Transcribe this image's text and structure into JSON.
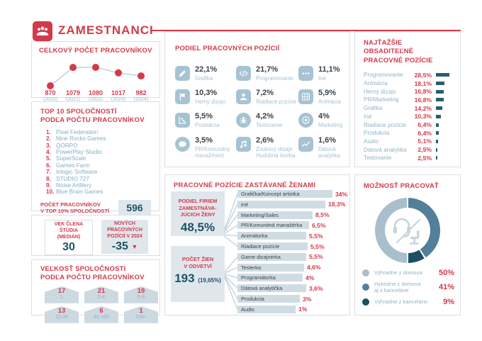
{
  "header": {
    "title": "ZAMESTNANCI",
    "logo_icon": "people-icon"
  },
  "colors": {
    "accent_red": "#d4394a",
    "dark_teal": "#1d5363",
    "ink": "#3a434b",
    "label_blue": "#a5c2d3",
    "tile_blue": "#a6c3d3",
    "bar_gray": "#cfdce3",
    "box_gray": "#dfe7ec",
    "hard_bar": "#2a5d70",
    "donut_light": "#a9bfcb",
    "donut_mid": "#527f99",
    "donut_dark": "#1d4f63"
  },
  "total": {
    "title": "CELKOVÝ POČET PRACOVNÍKOV"
  },
  "top10": {
    "title": "TOP 10 SPOLOČNOSTÍ\nPODĽA POČTU PRACOVNÍKOV",
    "companies": [
      "Pixel Federation",
      "Nine Rocks Games",
      "QORPO",
      "PowerPlay Studio",
      "SuperScale",
      "Games Farm",
      "Inlogic Software",
      "STUDIO 727",
      "Noise Artillery",
      "Blue Brain Games"
    ],
    "footer_label": "POČET PRACOVNÍKOV\nV TOP 10% SPOLOČNOSTÍ",
    "footer_value": "596"
  },
  "age_new": {
    "age_label": "VEK ČLENA\nŠTÚDIA\n(MEDIÁN)",
    "age_value": "30",
    "new_label": "NOVÝCH\nPRACOVNÝCH\nPOZÍCIÍ V 2024",
    "new_value": "-35",
    "new_trend": "down"
  },
  "size": {
    "title": "VEĽKOSŤ SPOLOČNOSTI\nPODĽA POČTU PRACOVNÍKOV",
    "items": [
      {
        "count": "17",
        "range": "1"
      },
      {
        "count": "21",
        "range": "2-4"
      },
      {
        "count": "19",
        "range": "5-9"
      },
      {
        "count": "13",
        "range": "10-39"
      },
      {
        "count": "6",
        "range": "40-100"
      },
      {
        "count": "1",
        "range": "200+"
      }
    ]
  },
  "podiel": {
    "title": "PODIEL PRACOVNÝCH POZÍCIÍ",
    "items": [
      {
        "pct": "22,1%",
        "label": "Grafika",
        "icon": "pen-icon",
        "shape": "square"
      },
      {
        "pct": "21,7%",
        "label": "Programovanie",
        "icon": "code-icon",
        "shape": "square"
      },
      {
        "pct": "11,1%",
        "label": "Iné",
        "icon": "dots-icon",
        "shape": "square"
      },
      {
        "pct": "10,3%",
        "label": "Herný dizajn",
        "icon": "flag-icon",
        "shape": "square"
      },
      {
        "pct": "7,2%",
        "label": "Riadiace pozície",
        "icon": "person-icon",
        "shape": "square"
      },
      {
        "pct": "5,9%",
        "label": "Animácia",
        "icon": "film-icon",
        "shape": "square"
      },
      {
        "pct": "5,5%",
        "label": "Produkcia",
        "icon": "decline-chart-icon",
        "shape": "square"
      },
      {
        "pct": "4,2%",
        "label": "Testovanie",
        "icon": "bug-icon",
        "shape": "round"
      },
      {
        "pct": "4%",
        "label": "Marketing",
        "icon": "target-icon",
        "shape": "round"
      },
      {
        "pct": "3,5%",
        "label": "PR/Komunitný\nmanažment",
        "icon": "chat-icon",
        "shape": "round"
      },
      {
        "pct": "2,6%",
        "label": "Zvukový dizajn\nHudobná tvorba",
        "icon": "music-note-icon",
        "shape": "square"
      },
      {
        "pct": "1,6%",
        "label": "Dátová\nanalytika",
        "icon": "line-chart-icon",
        "shape": "square"
      }
    ]
  },
  "women": {
    "title": "PRACOVNÉ POZÍCIE ZASTÁVANÉ ŽENAMI",
    "box1_label": "PODIEL FIRIEM\nZAMESTNÁVA-\nJÚCICH ŽENY",
    "box1_value": "48,5%",
    "box2_label": "POČET ŽIEN\nV ODVETVÍ",
    "box2_value": "193",
    "box2_sub": "(19,65%)",
    "bars": [
      {
        "label": "Grafička/Koncept artistka",
        "pct": "34%",
        "value": 34
      },
      {
        "label": "Iné",
        "pct": "18,3%",
        "value": 18.3
      },
      {
        "label": "Marketing/Sales",
        "pct": "8,5%",
        "value": 8.5
      },
      {
        "label": "PR/Komunitná manažérka",
        "pct": "6,5%",
        "value": 6.5
      },
      {
        "label": "Animátorka",
        "pct": "5,5%",
        "value": 5.5
      },
      {
        "label": "Riadiace pozície",
        "pct": "5,5%",
        "value": 5.5
      },
      {
        "label": "Game dizajnérka",
        "pct": "5,5%",
        "value": 5.5
      },
      {
        "label": "Testerka",
        "pct": "4,6%",
        "value": 4.6
      },
      {
        "label": "Programátorka",
        "pct": "4%",
        "value": 4
      },
      {
        "label": "Dátová analytička",
        "pct": "3,6%",
        "value": 3.6
      },
      {
        "label": "Produkcia",
        "pct": "3%",
        "value": 3
      },
      {
        "label": "Audio",
        "pct": "1%",
        "value": 1
      }
    ]
  },
  "hardest": {
    "title": "NAJŤAŽŠIE OBSADITEĽNÉ\nPRACOVNÉ POZÍCIE",
    "rows": [
      {
        "label": "Programovanie",
        "pct": "28,5%",
        "value": 28.5
      },
      {
        "label": "Animácia",
        "pct": "18,1%",
        "value": 18.1
      },
      {
        "label": "Herný dizajn",
        "pct": "16,8%",
        "value": 16.8
      },
      {
        "label": "PR/Marketing",
        "pct": "16,8%",
        "value": 16.8
      },
      {
        "label": "Grafika",
        "pct": "14,2%",
        "value": 14.2
      },
      {
        "label": "Iné",
        "pct": "10,3%",
        "value": 10.3
      },
      {
        "label": "Riadiace pozície",
        "pct": "6,4%",
        "value": 6.4
      },
      {
        "label": "Produkcia",
        "pct": "6,4%",
        "value": 6.4
      },
      {
        "label": "Audio",
        "pct": "5,1%",
        "value": 5.1
      },
      {
        "label": "Dátová analytika",
        "pct": "2,5%",
        "value": 2.5
      },
      {
        "label": "Testovanie",
        "pct": "2,5%",
        "value": 2.5
      }
    ]
  },
  "work": {
    "title": "MOŽNOSŤ PRACOVAŤ",
    "legend": [
      {
        "label": "Výhradne z domova",
        "pct": "50%",
        "value": 50,
        "color": "#a9bfcb"
      },
      {
        "label": "Hybridne z domova\naj z kancelárie",
        "pct": "41%",
        "value": 41,
        "color": "#527f99"
      },
      {
        "label": "Výhradne z kancelárie",
        "pct": "9%",
        "value": 9,
        "color": "#1d4f63"
      }
    ]
  },
  "chart_data": [
    {
      "type": "line",
      "title": "CELKOVÝ POČET PRACOVNÍKOV",
      "x": [
        "(2020)",
        "(2021)",
        "(2022)",
        "(2023)",
        "(2024)"
      ],
      "values": [
        870,
        1079,
        1080,
        1017,
        982
      ],
      "ylim": [
        850,
        1100
      ],
      "grid": false
    },
    {
      "type": "bar",
      "title": "PODIEL PRACOVNÝCH POZÍCIÍ",
      "unit": "%",
      "categories": [
        "Grafika",
        "Programovanie",
        "Iné",
        "Herný dizajn",
        "Riadiace pozície",
        "Animácia",
        "Produkcia",
        "Testovanie",
        "Marketing",
        "PR/Komunitný manažment",
        "Zvukový dizajn / Hudobná tvorba",
        "Dátová analytika"
      ],
      "values": [
        22.1,
        21.7,
        11.1,
        10.3,
        7.2,
        5.9,
        5.5,
        4.2,
        4,
        3.5,
        2.6,
        1.6
      ]
    },
    {
      "type": "bar",
      "title": "PRACOVNÉ POZÍCIE ZASTÁVANÉ ŽENAMI",
      "unit": "%",
      "categories": [
        "Grafička/Koncept artistka",
        "Iné",
        "Marketing/Sales",
        "PR/Komunitná manažérka",
        "Animátorka",
        "Riadiace pozície",
        "Game dizajnérka",
        "Testerka",
        "Programátorka",
        "Dátová analytička",
        "Produkcia",
        "Audio"
      ],
      "values": [
        34,
        18.3,
        8.5,
        6.5,
        5.5,
        5.5,
        5.5,
        4.6,
        4,
        3.6,
        3,
        1
      ],
      "annotations": {
        "share_of_companies_employing_women_pct": 48.5,
        "women_in_industry_count": 193,
        "women_share_pct": 19.65
      }
    },
    {
      "type": "bar",
      "title": "NAJŤAŽŠIE OBSADITEĽNÉ PRACOVNÉ POZÍCIE",
      "unit": "%",
      "categories": [
        "Programovanie",
        "Animácia",
        "Herný dizajn",
        "PR/Marketing",
        "Grafika",
        "Iné",
        "Riadiace pozície",
        "Produkcia",
        "Audio",
        "Dátová analytika",
        "Testovanie"
      ],
      "values": [
        28.5,
        18.1,
        16.8,
        16.8,
        14.2,
        10.3,
        6.4,
        6.4,
        5.1,
        2.5,
        2.5
      ]
    },
    {
      "type": "pie",
      "title": "MOŽNOSŤ PRACOVAŤ",
      "unit": "%",
      "labels": [
        "Výhradne z domova",
        "Hybridne z domova aj z kancelárie",
        "Výhradne z kancelárie"
      ],
      "values": [
        50,
        41,
        9
      ]
    },
    {
      "type": "bar",
      "title": "VEĽKOSŤ SPOLOČNOSTI PODĽA POČTU PRACOVNÍKOV",
      "categories": [
        "1",
        "2-4",
        "5-9",
        "10-39",
        "40-100",
        "200+"
      ],
      "values": [
        17,
        21,
        19,
        13,
        6,
        1
      ]
    },
    {
      "type": "table",
      "title": "Súhrnné ukazovatele",
      "rows": [
        [
          "Počet pracovníkov v top 10% spoločností",
          596
        ],
        [
          "Vek člena štúdia (medián)",
          30
        ],
        [
          "Nových pracovných pozícií v 2024",
          -35
        ]
      ]
    }
  ]
}
